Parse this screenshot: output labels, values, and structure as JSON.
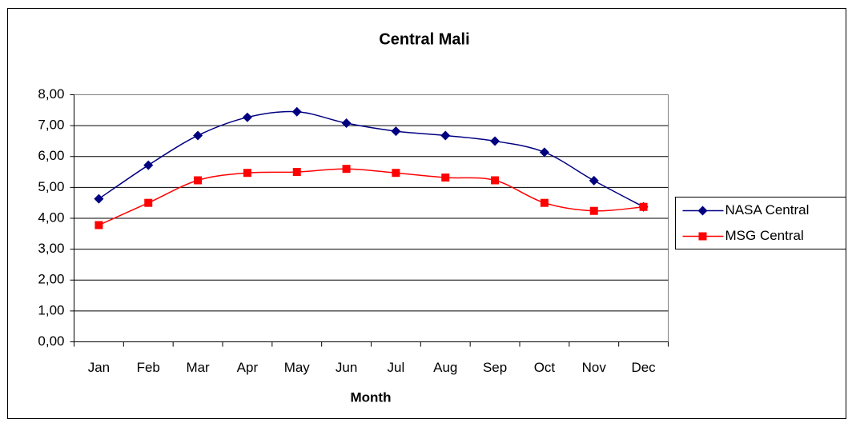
{
  "chart_data": {
    "type": "line",
    "title": "Central Mali",
    "x_label": "Month",
    "categories": [
      "Jan",
      "Feb",
      "Mar",
      "Apr",
      "May",
      "Jun",
      "Jul",
      "Aug",
      "Sep",
      "Oct",
      "Nov",
      "Dec"
    ],
    "series": [
      {
        "name": "NASA Central",
        "color": "#000080",
        "marker": "diamond",
        "values": [
          4.63,
          5.72,
          6.68,
          7.27,
          7.45,
          7.08,
          6.82,
          6.68,
          6.5,
          6.14,
          5.22,
          4.37
        ]
      },
      {
        "name": "MSG Central",
        "color": "#ff0000",
        "marker": "square",
        "values": [
          3.78,
          4.5,
          5.23,
          5.47,
          5.5,
          5.6,
          5.47,
          5.32,
          5.23,
          4.5,
          4.24,
          4.37
        ]
      }
    ],
    "ylim": [
      0,
      8
    ],
    "yticks": [
      {
        "value": 0,
        "label": "0,00"
      },
      {
        "value": 1,
        "label": "1,00"
      },
      {
        "value": 2,
        "label": "2,00"
      },
      {
        "value": 3,
        "label": "3,00"
      },
      {
        "value": 4,
        "label": "4,00"
      },
      {
        "value": 5,
        "label": "5,00"
      },
      {
        "value": 6,
        "label": "6,00"
      },
      {
        "value": 7,
        "label": "7,00"
      },
      {
        "value": 8,
        "label": "8,00"
      }
    ],
    "grid": true,
    "smooth": true,
    "legend": "right"
  }
}
